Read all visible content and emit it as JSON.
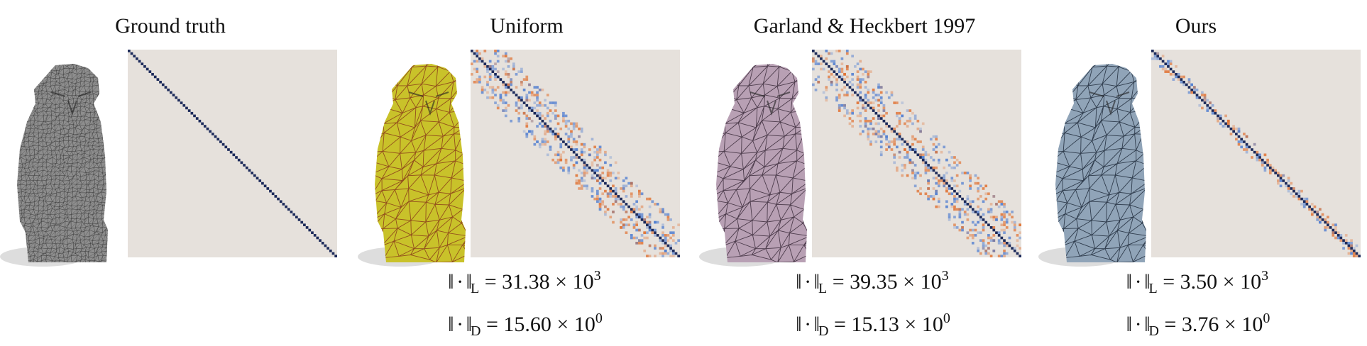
{
  "panels": [
    {
      "title": "Ground truth",
      "mesh_color": "#8e8e8e",
      "mesh_edge_color": "#3e3e3e",
      "mesh_density": "dense",
      "matrix_style": "identity",
      "metrics": []
    },
    {
      "title": "Uniform",
      "mesh_color": "#c9c22a",
      "mesh_edge_color": "#8a3a1a",
      "mesh_density": "coarse",
      "matrix_style": "noisy",
      "metrics": [
        {
          "norm": "‖ · ‖",
          "sub": "L",
          "eq": " = 31.38 × 10",
          "exp": "3"
        },
        {
          "norm": "‖ · ‖",
          "sub": "D",
          "eq": " = 15.60 × 10",
          "exp": "0"
        }
      ]
    },
    {
      "title": "Garland & Heckbert 1997",
      "mesh_color": "#b8a0b4",
      "mesh_edge_color": "#3a2a3a",
      "mesh_density": "coarse",
      "matrix_style": "noisy-wide",
      "metrics": [
        {
          "norm": "‖ · ‖",
          "sub": "L",
          "eq": " = 39.35 × 10",
          "exp": "3"
        },
        {
          "norm": "‖ · ‖",
          "sub": "D",
          "eq": " = 15.13 × 10",
          "exp": "0"
        }
      ]
    },
    {
      "title": "Ours",
      "mesh_color": "#90a4b8",
      "mesh_edge_color": "#1e2a3a",
      "mesh_density": "coarse",
      "matrix_style": "clean",
      "metrics": [
        {
          "norm": "‖ · ‖",
          "sub": "L",
          "eq": " = 3.50 × 10",
          "exp": "3"
        },
        {
          "norm": "‖ · ‖",
          "sub": "D",
          "eq": " = 3.76 × 10",
          "exp": "0"
        }
      ]
    }
  ],
  "colors": {
    "matrix_background": "#e6e1dc",
    "diagonal": "#1c2a5a",
    "positive": "#e07030",
    "negative": "#4a7ad0"
  }
}
